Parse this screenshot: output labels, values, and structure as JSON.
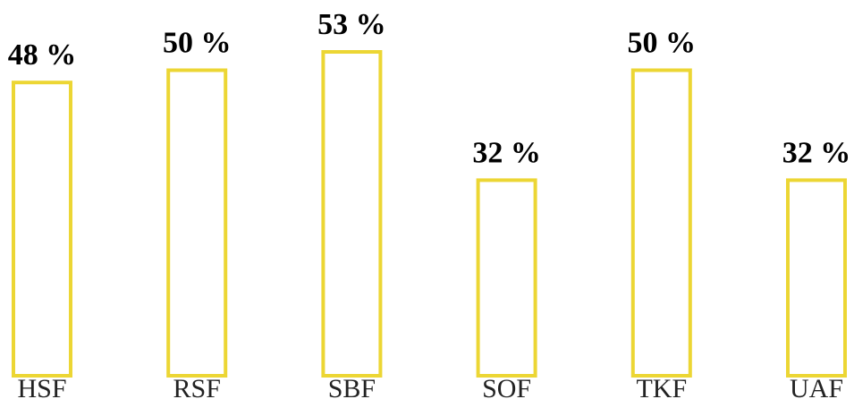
{
  "chart_data": {
    "type": "bar",
    "categories": [
      "HSF",
      "RSF",
      "SBF",
      "SOF",
      "TKF",
      "UAF"
    ],
    "values": [
      48,
      50,
      53,
      32,
      50,
      32
    ],
    "value_labels": [
      "48 %",
      "50 %",
      "53 %",
      "32 %",
      "50 %",
      "32 %"
    ],
    "title": "",
    "xlabel": "",
    "ylabel": "",
    "ylim": [
      0,
      53
    ],
    "grid": false,
    "bar_style": "outline",
    "bar_color": "#ecd634"
  }
}
